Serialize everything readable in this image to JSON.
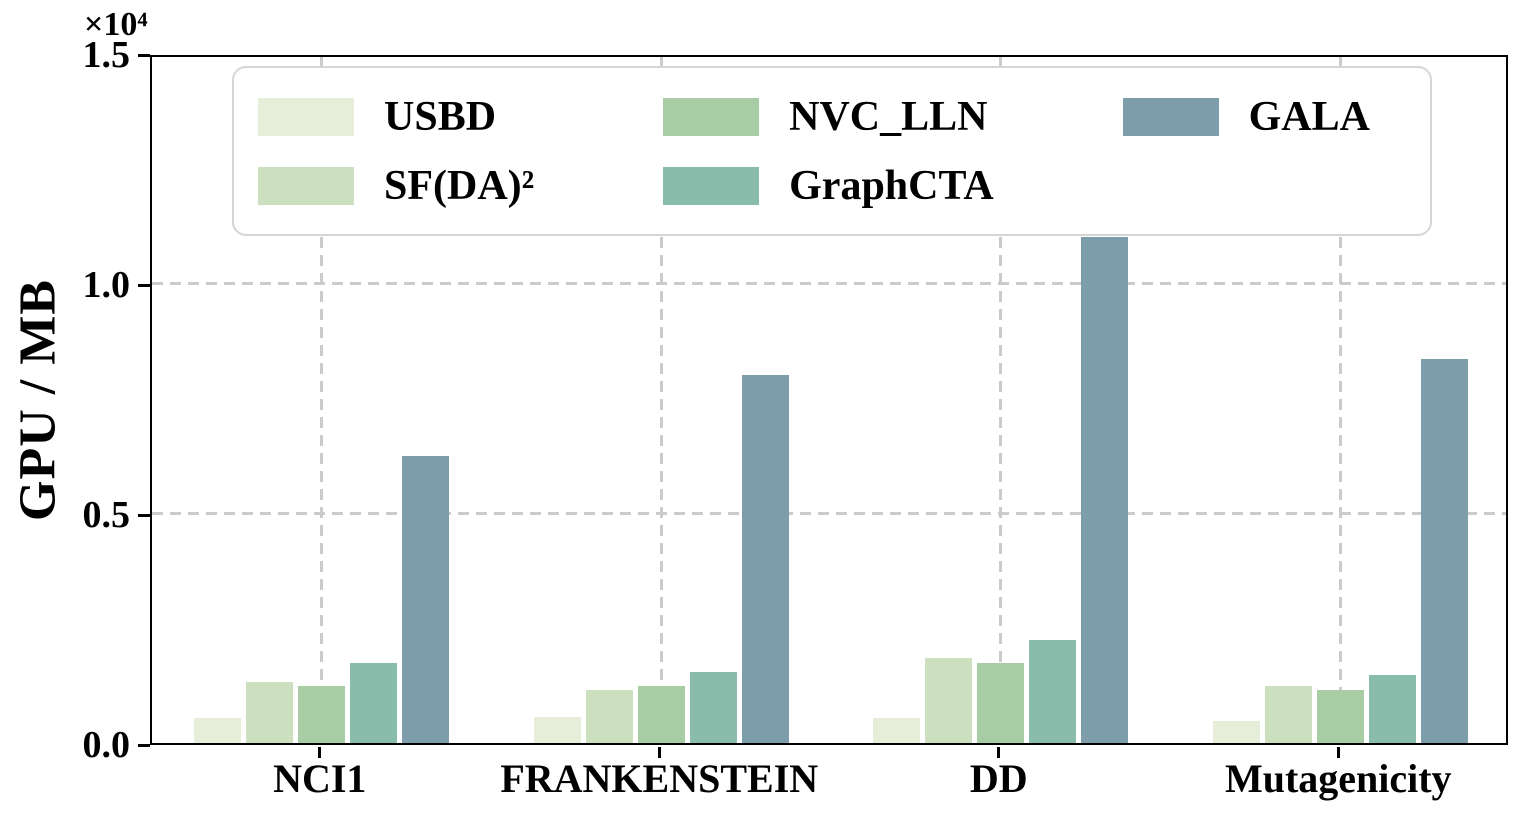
{
  "chart_data": {
    "type": "bar",
    "title": "",
    "xlabel": "",
    "ylabel": "GPU / MB",
    "y_offset_text": "×10⁴",
    "ylim": [
      0,
      15000
    ],
    "yticks": [
      0,
      5000,
      10000,
      15000
    ],
    "ytick_labels": [
      "0.0",
      "0.5",
      "1.0",
      "1.5"
    ],
    "categories": [
      "NCI1",
      "FRANKENSTEIN",
      "DD",
      "Mutagenicity"
    ],
    "series": [
      {
        "name": "USBD",
        "color": "#e6eed9",
        "values": [
          550,
          570,
          540,
          480
        ]
      },
      {
        "name": "SF(DA)²",
        "color": "#ccdfbe",
        "values": [
          1330,
          1150,
          1850,
          1250
        ]
      },
      {
        "name": "NVC_LLN",
        "color": "#a8cda4",
        "values": [
          1250,
          1250,
          1750,
          1150
        ]
      },
      {
        "name": "GraphCTA",
        "color": "#8abcab",
        "values": [
          1750,
          1550,
          2250,
          1480
        ]
      },
      {
        "name": "GALA",
        "color": "#7d9dab",
        "values": [
          6250,
          8000,
          11000,
          8350
        ]
      }
    ],
    "grid": true,
    "legend_position": "upper center",
    "legend_rows": 2
  },
  "colors": {
    "axis": "#000000",
    "grid": "#cbcbcb",
    "background": "#ffffff",
    "legend_border": "#d5d5d5"
  }
}
